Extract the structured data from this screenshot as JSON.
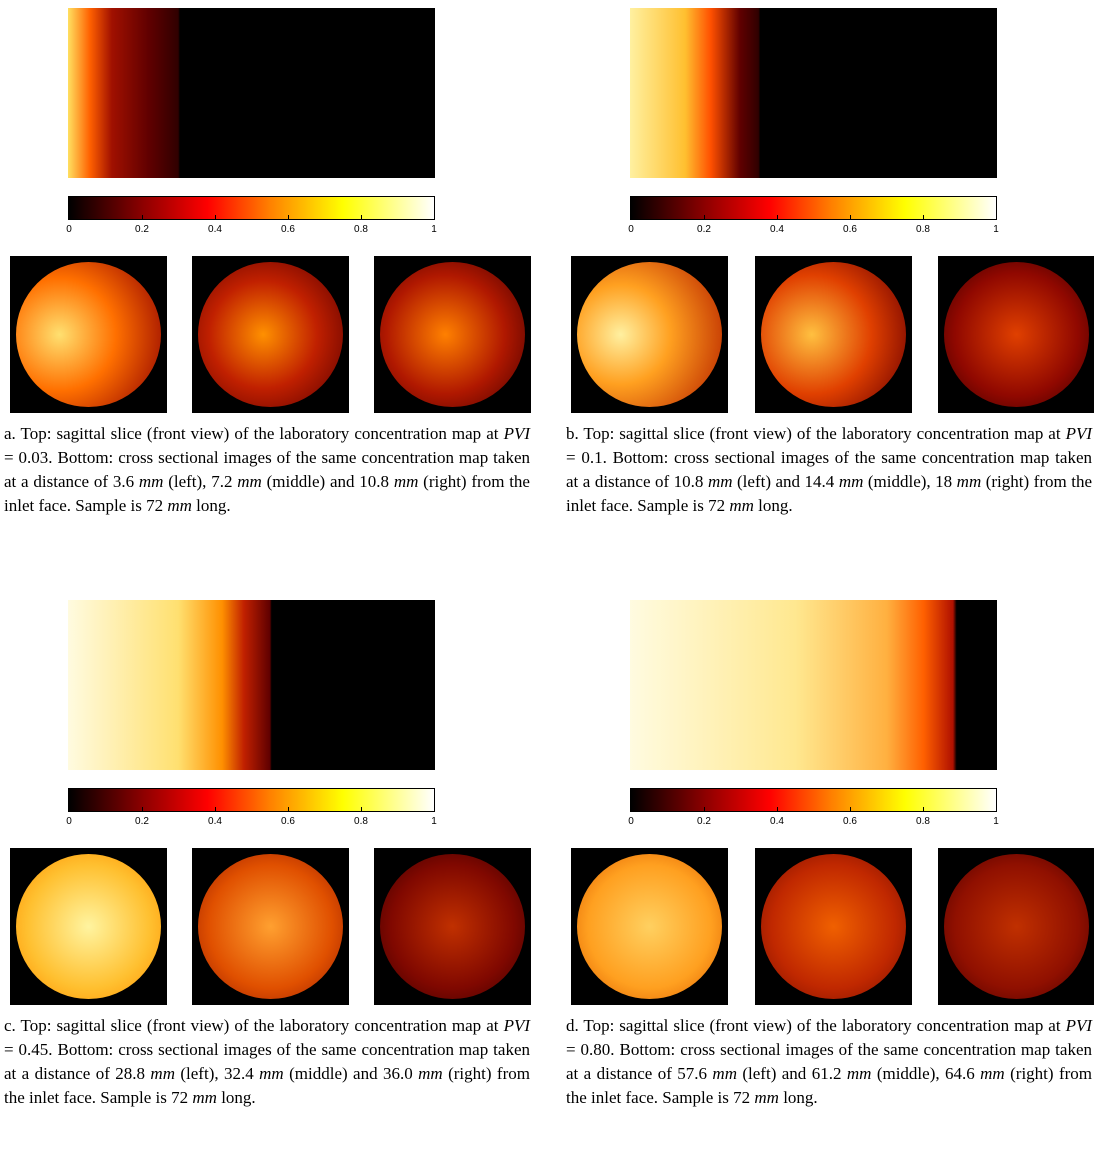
{
  "panels": [
    {
      "colorbar": {
        "lim": [
          0,
          1
        ],
        "ticks": [
          0,
          0.2,
          0.4,
          0.6,
          0.8,
          1
        ]
      },
      "caption": [
        {
          "text": "a. Top: sagittal slice (front view) of the laboratory concentration map at "
        },
        {
          "text": "PVI",
          "italic": true
        },
        {
          "text": " = 0.03. Bottom: cross sectional images of the same concentration map taken at a distance of 3.6 "
        },
        {
          "text": "mm",
          "italic": true
        },
        {
          "text": " (left), 7.2 "
        },
        {
          "text": "mm",
          "italic": true
        },
        {
          "text": " (middle) and 10.8 "
        },
        {
          "text": "mm",
          "italic": true
        },
        {
          "text": " (right) from the inlet face. Sample is 72 "
        },
        {
          "text": "mm",
          "italic": true
        },
        {
          "text": " long."
        }
      ]
    },
    {
      "colorbar": {
        "lim": [
          0,
          1
        ],
        "ticks": [
          0,
          0.2,
          0.4,
          0.6,
          0.8,
          1
        ]
      },
      "caption": [
        {
          "text": "b. Top: sagittal slice (front view) of the laboratory concentration map at "
        },
        {
          "text": "PVI",
          "italic": true
        },
        {
          "text": " = 0.1. Bottom: cross sectional images of the same concentration map taken at a distance of 10.8 "
        },
        {
          "text": "mm",
          "italic": true
        },
        {
          "text": " (left) and 14.4 "
        },
        {
          "text": "mm",
          "italic": true
        },
        {
          "text": " (middle), 18 "
        },
        {
          "text": "mm",
          "italic": true
        },
        {
          "text": " (right) from the inlet face. Sample is 72 "
        },
        {
          "text": "mm",
          "italic": true
        },
        {
          "text": " long."
        }
      ]
    },
    {
      "colorbar": {
        "lim": [
          0,
          1
        ],
        "ticks": [
          0,
          0.2,
          0.4,
          0.6,
          0.8,
          1
        ]
      },
      "caption": [
        {
          "text": "c. Top: sagittal slice (front view) of the laboratory concentration map at "
        },
        {
          "text": "PVI",
          "italic": true
        },
        {
          "text": " = 0.45. Bottom: cross sectional images of the same concentration map taken at a distance of 28.8 "
        },
        {
          "text": "mm",
          "italic": true
        },
        {
          "text": " (left), 32.4 "
        },
        {
          "text": "mm",
          "italic": true
        },
        {
          "text": " (middle) and 36.0 "
        },
        {
          "text": "mm",
          "italic": true
        },
        {
          "text": " (right) from the inlet face. Sample is 72 "
        },
        {
          "text": "mm",
          "italic": true
        },
        {
          "text": " long."
        }
      ]
    },
    {
      "colorbar": {
        "lim": [
          0,
          1
        ],
        "ticks": [
          0,
          0.2,
          0.4,
          0.6,
          0.8,
          1
        ]
      },
      "caption": [
        {
          "text": "d. Top: sagittal slice (front view) of the laboratory concentration map at "
        },
        {
          "text": "PVI",
          "italic": true
        },
        {
          "text": " = 0.80. Bottom: cross sectional images of the same concentration map taken at a distance of 57.6 "
        },
        {
          "text": "mm",
          "italic": true
        },
        {
          "text": " (left) and 61.2 "
        },
        {
          "text": "mm",
          "italic": true
        },
        {
          "text": " (middle), 64.6 "
        },
        {
          "text": "mm",
          "italic": true
        },
        {
          "text": " (right) from the inlet face. Sample is 72 "
        },
        {
          "text": "mm",
          "italic": true
        },
        {
          "text": " long."
        }
      ]
    }
  ]
}
